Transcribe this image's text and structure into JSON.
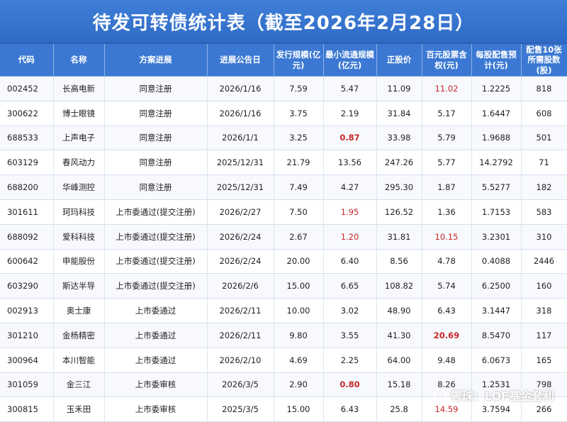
{
  "title": "待发可转债统计表（截至2026年2月28日）",
  "headers": [
    "代码",
    "名称",
    "方案进展",
    "进展公告日",
    "发行规模(亿元)",
    "最小流通规模(亿元)",
    "正股价",
    "百元股票含权(元)",
    "每股配售预计(元)",
    "配售10张所需股数(股)"
  ],
  "rows": [
    {
      "code": "002452",
      "name": "长高电新",
      "progress": "同意注册",
      "date": "2026/1/16",
      "scale": "7.59",
      "min_float": "5.47",
      "price": "11.09",
      "per100": "11.02",
      "per_share": "1.2225",
      "shares": "818"
    },
    {
      "code": "300622",
      "name": "博士眼镜",
      "progress": "同意注册",
      "date": "2026/1/16",
      "scale": "3.75",
      "min_float": "2.19",
      "price": "31.84",
      "per100": "5.17",
      "per_share": "1.6447",
      "shares": "608"
    },
    {
      "code": "688533",
      "name": "上声电子",
      "progress": "同意注册",
      "date": "2026/1/1",
      "scale": "3.25",
      "min_float": "0.87",
      "price": "33.98",
      "per100": "5.79",
      "per_share": "1.9688",
      "shares": "501"
    },
    {
      "code": "603129",
      "name": "春风动力",
      "progress": "同意注册",
      "date": "2025/12/31",
      "scale": "21.79",
      "min_float": "13.56",
      "price": "247.26",
      "per100": "5.77",
      "per_share": "14.2792",
      "shares": "71"
    },
    {
      "code": "688200",
      "name": "华峰测控",
      "progress": "同意注册",
      "date": "2025/12/31",
      "scale": "7.49",
      "min_float": "4.27",
      "price": "295.30",
      "per100": "1.87",
      "per_share": "5.5277",
      "shares": "182"
    },
    {
      "code": "301611",
      "name": "珂玛科技",
      "progress": "上市委通过(提交注册)",
      "date": "2026/2/27",
      "scale": "7.50",
      "min_float": "1.95",
      "price": "126.52",
      "per100": "1.36",
      "per_share": "1.7153",
      "shares": "583"
    },
    {
      "code": "688092",
      "name": "爱科科技",
      "progress": "上市委通过(提交注册)",
      "date": "2026/2/24",
      "scale": "2.67",
      "min_float": "1.20",
      "price": "31.81",
      "per100": "10.15",
      "per_share": "3.2301",
      "shares": "310"
    },
    {
      "code": "600642",
      "name": "申能股份",
      "progress": "上市委通过(提交注册)",
      "date": "2026/2/24",
      "scale": "20.00",
      "min_float": "6.40",
      "price": "8.56",
      "per100": "4.78",
      "per_share": "0.4088",
      "shares": "2446"
    },
    {
      "code": "603290",
      "name": "斯达半导",
      "progress": "上市委通过(提交注册)",
      "date": "2026/2/6",
      "scale": "15.00",
      "min_float": "6.65",
      "price": "108.82",
      "per100": "5.74",
      "per_share": "6.2500",
      "shares": "160"
    },
    {
      "code": "002913",
      "name": "奥士康",
      "progress": "上市委通过",
      "date": "2026/2/11",
      "scale": "10.00",
      "min_float": "3.02",
      "price": "48.90",
      "per100": "6.43",
      "per_share": "3.1447",
      "shares": "318"
    },
    {
      "code": "301210",
      "name": "金杨精密",
      "progress": "上市委通过",
      "date": "2026/2/11",
      "scale": "9.80",
      "min_float": "3.55",
      "price": "41.30",
      "per100": "20.69",
      "per_share": "8.5470",
      "shares": "117"
    },
    {
      "code": "300964",
      "name": "本川智能",
      "progress": "上市委通过",
      "date": "2026/2/10",
      "scale": "4.69",
      "min_float": "2.25",
      "price": "64.00",
      "per100": "9.48",
      "per_share": "6.0673",
      "shares": "165"
    },
    {
      "code": "301059",
      "name": "金三江",
      "progress": "上市委审核",
      "date": "2026/3/5",
      "scale": "2.90",
      "min_float": "0.80",
      "price": "15.18",
      "per100": "8.26",
      "per_share": "1.2531",
      "shares": "798"
    },
    {
      "code": "300815",
      "name": "玉禾田",
      "progress": "上市委审核",
      "date": "2025/3/5",
      "scale": "15.00",
      "min_float": "6.43",
      "price": "25.8",
      "per100": "14.59",
      "per_share": "3.7594",
      "shares": "266"
    }
  ],
  "highlight_red": [
    {
      "row": 0,
      "field": "per100"
    },
    {
      "row": 2,
      "field": "min_float",
      "bold": true
    },
    {
      "row": 5,
      "field": "min_float"
    },
    {
      "row": 6,
      "field": "min_float"
    },
    {
      "row": 6,
      "field": "per100"
    },
    {
      "row": 10,
      "field": "per100",
      "bold": true
    },
    {
      "row": 12,
      "field": "min_float",
      "bold": true
    },
    {
      "row": 13,
      "field": "per100"
    }
  ],
  "watermark": "雪球：LOF基金套利",
  "colors": {
    "header_bg": "#3b78d3",
    "title_bg": "#3f7fd8",
    "red": "#c7262b"
  }
}
